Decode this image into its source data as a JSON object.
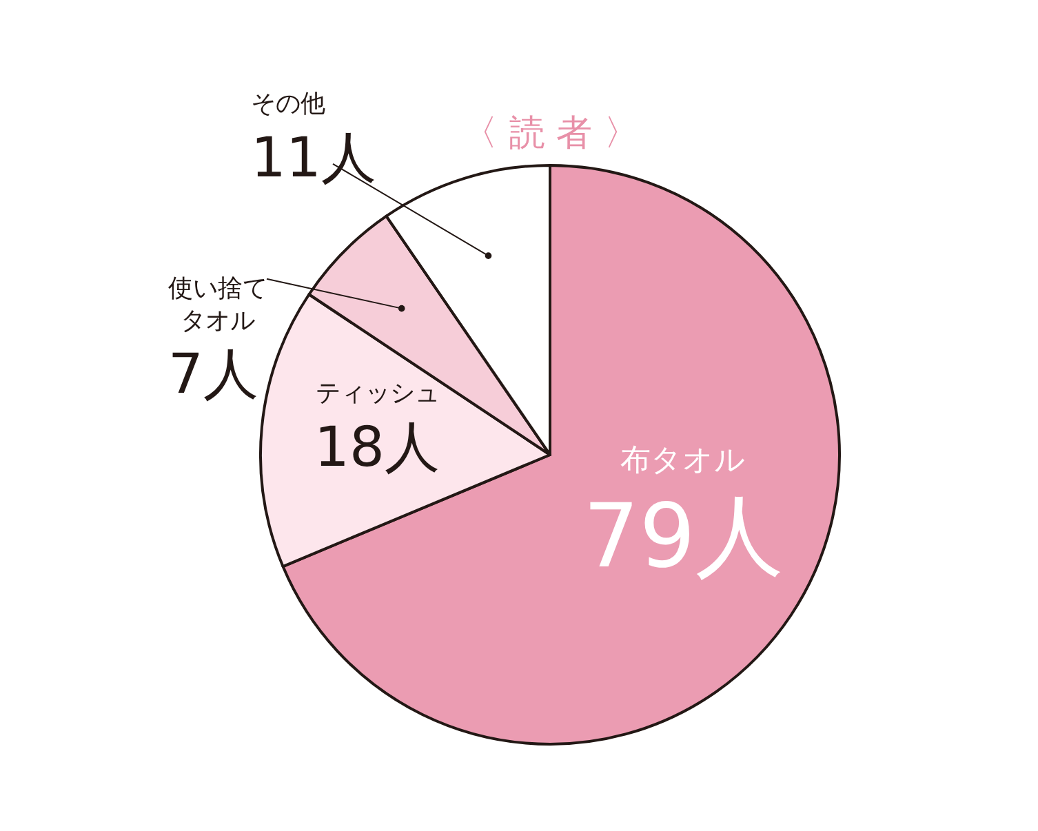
{
  "chart_data": {
    "type": "pie",
    "title": "〈 読 者 〉",
    "categories": [
      "布タオル",
      "ティッシュ",
      "使い捨てタオル",
      "その他"
    ],
    "values": [
      79,
      18,
      7,
      11
    ],
    "value_labels": [
      "79人",
      "18人",
      "7人",
      "11人"
    ],
    "colors": [
      "#eb9cb2",
      "#fde6ec",
      "#f6cdd8",
      "#ffffff"
    ]
  }
}
